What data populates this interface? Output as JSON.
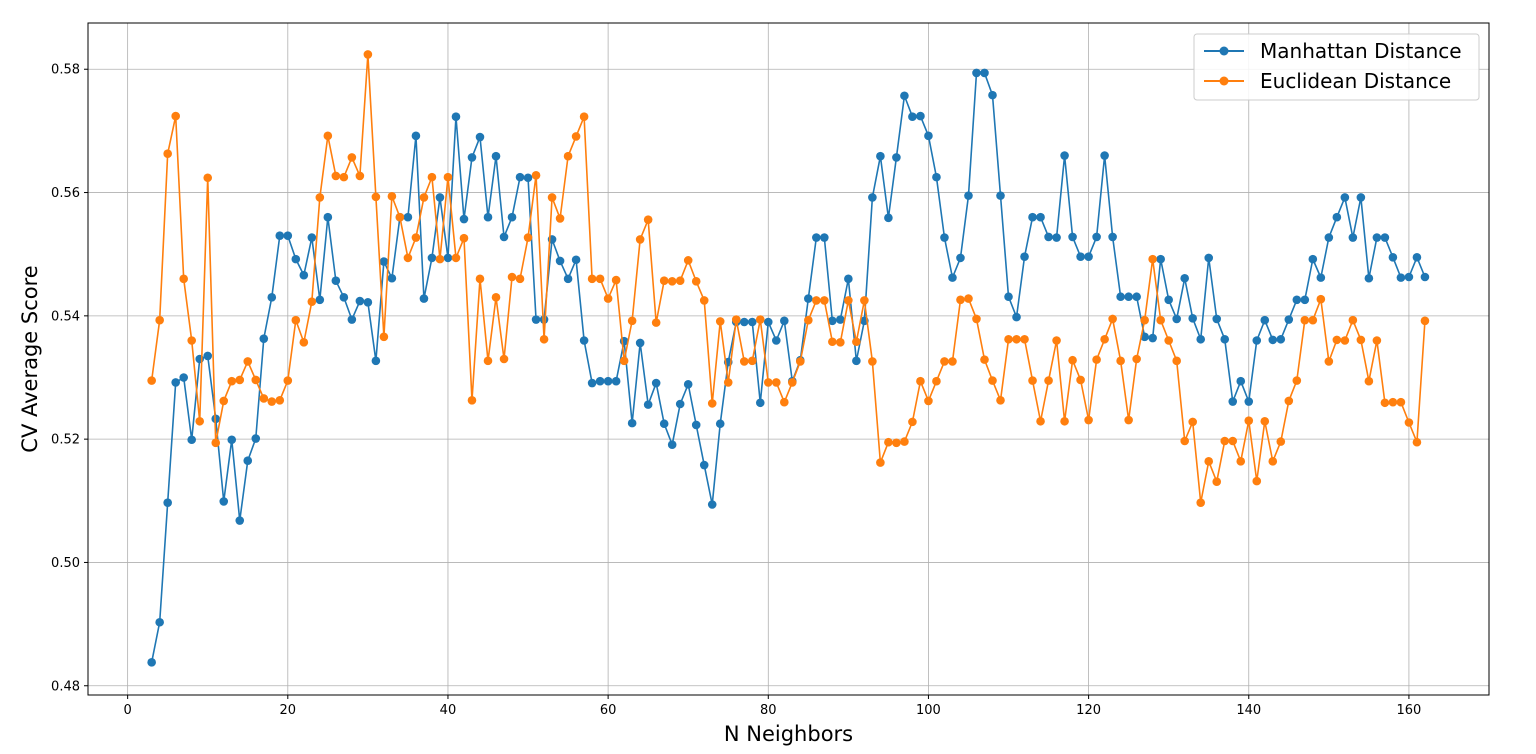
{
  "chart_data": {
    "type": "line",
    "title": "",
    "xlabel": "N Neighbors",
    "ylabel": "CV Average Score",
    "xlim": [
      -4.95,
      170
    ],
    "ylim": [
      0.4785,
      0.5875
    ],
    "xticks": [
      0,
      20,
      40,
      60,
      80,
      100,
      120,
      140,
      160
    ],
    "yticks": [
      0.48,
      0.5,
      0.52,
      0.54,
      0.56,
      0.58
    ],
    "ytick_labels": [
      "0.48",
      "0.50",
      "0.52",
      "0.54",
      "0.56",
      "0.58"
    ],
    "grid": true,
    "legend_position": "top-right",
    "x_start": 3,
    "series": [
      {
        "name": "Manhattan Distance",
        "color": "#1f77b4",
        "marker": "circle",
        "values": [
          0.4838,
          0.4903,
          0.5097,
          0.5292,
          0.53,
          0.5199,
          0.533,
          0.5335,
          0.5233,
          0.5099,
          0.5199,
          0.5068,
          0.5165,
          0.5201,
          0.5363,
          0.543,
          0.553,
          0.553,
          0.5492,
          0.5466,
          0.5527,
          0.5426,
          0.556,
          0.5457,
          0.543,
          0.5394,
          0.5424,
          0.5422,
          0.5327,
          0.5488,
          0.5461,
          0.556,
          0.556,
          0.5692,
          0.5428,
          0.5494,
          0.5592,
          0.5494,
          0.5723,
          0.5557,
          0.5657,
          0.569,
          0.556,
          0.5659,
          0.5528,
          0.556,
          0.5625,
          0.5624,
          0.5394,
          0.5394,
          0.5524,
          0.5489,
          0.546,
          0.5491,
          0.536,
          0.5291,
          0.5294,
          0.5294,
          0.5294,
          0.5359,
          0.5226,
          0.5356,
          0.5256,
          0.5291,
          0.5225,
          0.5191,
          0.5257,
          0.5289,
          0.5223,
          0.5158,
          0.5094,
          0.5225,
          0.5325,
          0.539,
          0.539,
          0.539,
          0.5259,
          0.539,
          0.536,
          0.5392,
          0.5294,
          0.5328,
          0.5428,
          0.5527,
          0.5527,
          0.5392,
          0.5394,
          0.546,
          0.5327,
          0.5392,
          0.5592,
          0.5659,
          0.5559,
          0.5657,
          0.5757,
          0.5723,
          0.5724,
          0.5692,
          0.5625,
          0.5527,
          0.5462,
          0.5494,
          0.5595,
          0.5794,
          0.5794,
          0.5758,
          0.5595,
          0.5431,
          0.5398,
          0.5496,
          0.556,
          0.556,
          0.5528,
          0.5527,
          0.566,
          0.5528,
          0.5496,
          0.5496,
          0.5528,
          0.566,
          0.5528,
          0.5431,
          0.5431,
          0.5431,
          0.5366,
          0.5364,
          0.5492,
          0.5426,
          0.5395,
          0.5461,
          0.5396,
          0.5362,
          0.5494,
          0.5395,
          0.5362,
          0.5261,
          0.5294,
          0.5261,
          0.536,
          0.5393,
          0.5361,
          0.5362,
          0.5394,
          0.5426,
          0.5426,
          0.5492,
          0.5462,
          0.5527,
          0.556,
          0.5592,
          0.5527,
          0.5592,
          0.5461,
          0.5527,
          0.5527,
          0.5495,
          0.5462,
          0.5463,
          0.5495,
          0.5463
        ]
      },
      {
        "name": "Euclidean Distance",
        "color": "#ff7f0e",
        "marker": "circle",
        "values": [
          0.5295,
          0.5393,
          0.5663,
          0.5724,
          0.546,
          0.536,
          0.5229,
          0.5624,
          0.5194,
          0.5262,
          0.5294,
          0.5296,
          0.5326,
          0.5296,
          0.5266,
          0.5261,
          0.5263,
          0.5295,
          0.5393,
          0.5357,
          0.5423,
          0.5592,
          0.5692,
          0.5627,
          0.5625,
          0.5657,
          0.5627,
          0.5824,
          0.5593,
          0.5366,
          0.5594,
          0.556,
          0.5494,
          0.5527,
          0.5592,
          0.5625,
          0.5492,
          0.5625,
          0.5494,
          0.5526,
          0.5263,
          0.546,
          0.5327,
          0.543,
          0.533,
          0.5463,
          0.546,
          0.5527,
          0.5628,
          0.5362,
          0.5592,
          0.5558,
          0.5659,
          0.5691,
          0.5723,
          0.546,
          0.546,
          0.5428,
          0.5458,
          0.5327,
          0.5392,
          0.5524,
          0.5556,
          0.5389,
          0.5457,
          0.5456,
          0.5457,
          0.549,
          0.5456,
          0.5425,
          0.5258,
          0.5391,
          0.5292,
          0.5394,
          0.5326,
          0.5327,
          0.5394,
          0.5292,
          0.5292,
          0.526,
          0.5292,
          0.5326,
          0.5393,
          0.5425,
          0.5425,
          0.5358,
          0.5357,
          0.5425,
          0.5358,
          0.5425,
          0.5326,
          0.5162,
          0.5195,
          0.5194,
          0.5196,
          0.5228,
          0.5294,
          0.5262,
          0.5294,
          0.5326,
          0.5326,
          0.5426,
          0.5428,
          0.5395,
          0.5329,
          0.5295,
          0.5263,
          0.5362,
          0.5362,
          0.5362,
          0.5295,
          0.5229,
          0.5295,
          0.536,
          0.5229,
          0.5328,
          0.5296,
          0.5231,
          0.5329,
          0.5362,
          0.5395,
          0.5327,
          0.5231,
          0.533,
          0.5393,
          0.5492,
          0.5393,
          0.536,
          0.5327,
          0.5197,
          0.5228,
          0.5097,
          0.5164,
          0.5131,
          0.5197,
          0.5197,
          0.5164,
          0.523,
          0.5132,
          0.5229,
          0.5164,
          0.5196,
          0.5262,
          0.5295,
          0.5393,
          0.5393,
          0.5427,
          0.5326,
          0.5361,
          0.536,
          0.5393,
          0.5361,
          0.5294,
          0.536,
          0.5259,
          0.526,
          0.526,
          0.5227,
          0.5195,
          0.5392
        ]
      }
    ]
  }
}
